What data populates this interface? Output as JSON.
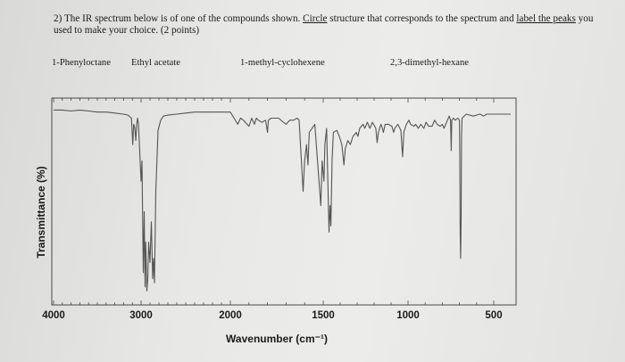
{
  "question": {
    "number": "2)",
    "part1": "The IR spectrum below is of one of the compounds shown.",
    "circle_text": "Circle",
    "part2": "structure that corresponds to the spectrum and",
    "label_text": "label the peaks",
    "part3": "you used to make your choice. (2 points)"
  },
  "compounds": [
    "1-Phenyloctane",
    "Ethyl acetate",
    "1-methyl-cyclohexene",
    "2,3-dimethyl-hexane"
  ],
  "chart_data": {
    "type": "line",
    "xlabel": "Wavenumber (cm⁻¹)",
    "ylabel": "Transmittance (%)",
    "xlim": [
      4000,
      400
    ],
    "ylim": [
      0,
      100
    ],
    "x_ticks": [
      "4000",
      "3000",
      "2000",
      "1500",
      "1000",
      "500"
    ],
    "x_tick_values": [
      4000,
      3000,
      2000,
      1500,
      1000,
      500
    ],
    "grid": false,
    "series": [
      {
        "color": "#555555",
        "points": [
          [
            4000,
            95
          ],
          [
            3900,
            95
          ],
          [
            3800,
            94.5
          ],
          [
            3700,
            95
          ],
          [
            3600,
            94.5
          ],
          [
            3500,
            94
          ],
          [
            3400,
            94
          ],
          [
            3300,
            93.5
          ],
          [
            3200,
            93
          ],
          [
            3150,
            92.5
          ],
          [
            3110,
            91
          ],
          [
            3095,
            78
          ],
          [
            3085,
            88
          ],
          [
            3070,
            86
          ],
          [
            3060,
            80
          ],
          [
            3050,
            88
          ],
          [
            3040,
            91
          ],
          [
            3030,
            88
          ],
          [
            3000,
            60
          ],
          [
            2990,
            70
          ],
          [
            2975,
            15
          ],
          [
            2965,
            45
          ],
          [
            2955,
            8
          ],
          [
            2948,
            30
          ],
          [
            2935,
            6
          ],
          [
            2925,
            12
          ],
          [
            2915,
            30
          ],
          [
            2900,
            20
          ],
          [
            2885,
            40
          ],
          [
            2870,
            12
          ],
          [
            2860,
            22
          ],
          [
            2850,
            10
          ],
          [
            2835,
            55
          ],
          [
            2810,
            85
          ],
          [
            2780,
            90
          ],
          [
            2750,
            92
          ],
          [
            2700,
            92.5
          ],
          [
            2600,
            93
          ],
          [
            2500,
            93.5
          ],
          [
            2400,
            94
          ],
          [
            2300,
            94
          ],
          [
            2200,
            94
          ],
          [
            2100,
            94
          ],
          [
            2000,
            94
          ],
          [
            1960,
            88
          ],
          [
            1945,
            91
          ],
          [
            1930,
            90
          ],
          [
            1900,
            87
          ],
          [
            1885,
            91
          ],
          [
            1870,
            88
          ],
          [
            1860,
            91
          ],
          [
            1850,
            90
          ],
          [
            1830,
            89
          ],
          [
            1810,
            90
          ],
          [
            1800,
            84
          ],
          [
            1795,
            90
          ],
          [
            1780,
            91
          ],
          [
            1760,
            91
          ],
          [
            1740,
            91
          ],
          [
            1715,
            89
          ],
          [
            1700,
            88
          ],
          [
            1680,
            90
          ],
          [
            1660,
            90
          ],
          [
            1640,
            91
          ],
          [
            1630,
            90
          ],
          [
            1608,
            55
          ],
          [
            1600,
            70
          ],
          [
            1590,
            78
          ],
          [
            1582,
            68
          ],
          [
            1575,
            84
          ],
          [
            1560,
            86
          ],
          [
            1545,
            88
          ],
          [
            1513,
            48
          ],
          [
            1506,
            70
          ],
          [
            1496,
            60
          ],
          [
            1490,
            78
          ],
          [
            1480,
            86
          ],
          [
            1466,
            35
          ],
          [
            1460,
            48
          ],
          [
            1455,
            38
          ],
          [
            1448,
            70
          ],
          [
            1440,
            84
          ],
          [
            1420,
            85
          ],
          [
            1405,
            82
          ],
          [
            1390,
            78
          ],
          [
            1378,
            68
          ],
          [
            1370,
            76
          ],
          [
            1355,
            80
          ],
          [
            1340,
            78
          ],
          [
            1325,
            82
          ],
          [
            1305,
            84
          ],
          [
            1295,
            82
          ],
          [
            1285,
            86
          ],
          [
            1265,
            88
          ],
          [
            1255,
            86
          ],
          [
            1240,
            89
          ],
          [
            1225,
            86
          ],
          [
            1210,
            89
          ],
          [
            1190,
            86
          ],
          [
            1182,
            79
          ],
          [
            1175,
            84
          ],
          [
            1160,
            88
          ],
          [
            1155,
            87
          ],
          [
            1145,
            84
          ],
          [
            1135,
            88
          ],
          [
            1115,
            88
          ],
          [
            1095,
            87
          ],
          [
            1085,
            84
          ],
          [
            1078,
            86
          ],
          [
            1060,
            88
          ],
          [
            1042,
            85
          ],
          [
            1032,
            72
          ],
          [
            1025,
            84
          ],
          [
            1010,
            88
          ],
          [
            995,
            90
          ],
          [
            985,
            88
          ],
          [
            965,
            87
          ],
          [
            955,
            88
          ],
          [
            940,
            86
          ],
          [
            925,
            88
          ],
          [
            908,
            86
          ],
          [
            895,
            89
          ],
          [
            880,
            87
          ],
          [
            860,
            87
          ],
          [
            845,
            90
          ],
          [
            830,
            88
          ],
          [
            812,
            87
          ],
          [
            800,
            88
          ],
          [
            790,
            86
          ],
          [
            770,
            90
          ],
          [
            760,
            92
          ],
          [
            752,
            90
          ],
          [
            748,
            75
          ],
          [
            745,
            90
          ],
          [
            735,
            91
          ],
          [
            725,
            90
          ],
          [
            710,
            91
          ],
          [
            700,
            90
          ],
          [
            698,
            72
          ],
          [
            696,
            34
          ],
          [
            693,
            22
          ],
          [
            690,
            42
          ],
          [
            688,
            82
          ],
          [
            685,
            91
          ],
          [
            660,
            93
          ],
          [
            620,
            92
          ],
          [
            580,
            93
          ],
          [
            560,
            92
          ],
          [
            540,
            93
          ],
          [
            500,
            93
          ],
          [
            450,
            93
          ],
          [
            420,
            93
          ],
          [
            400,
            93
          ]
        ]
      }
    ]
  }
}
